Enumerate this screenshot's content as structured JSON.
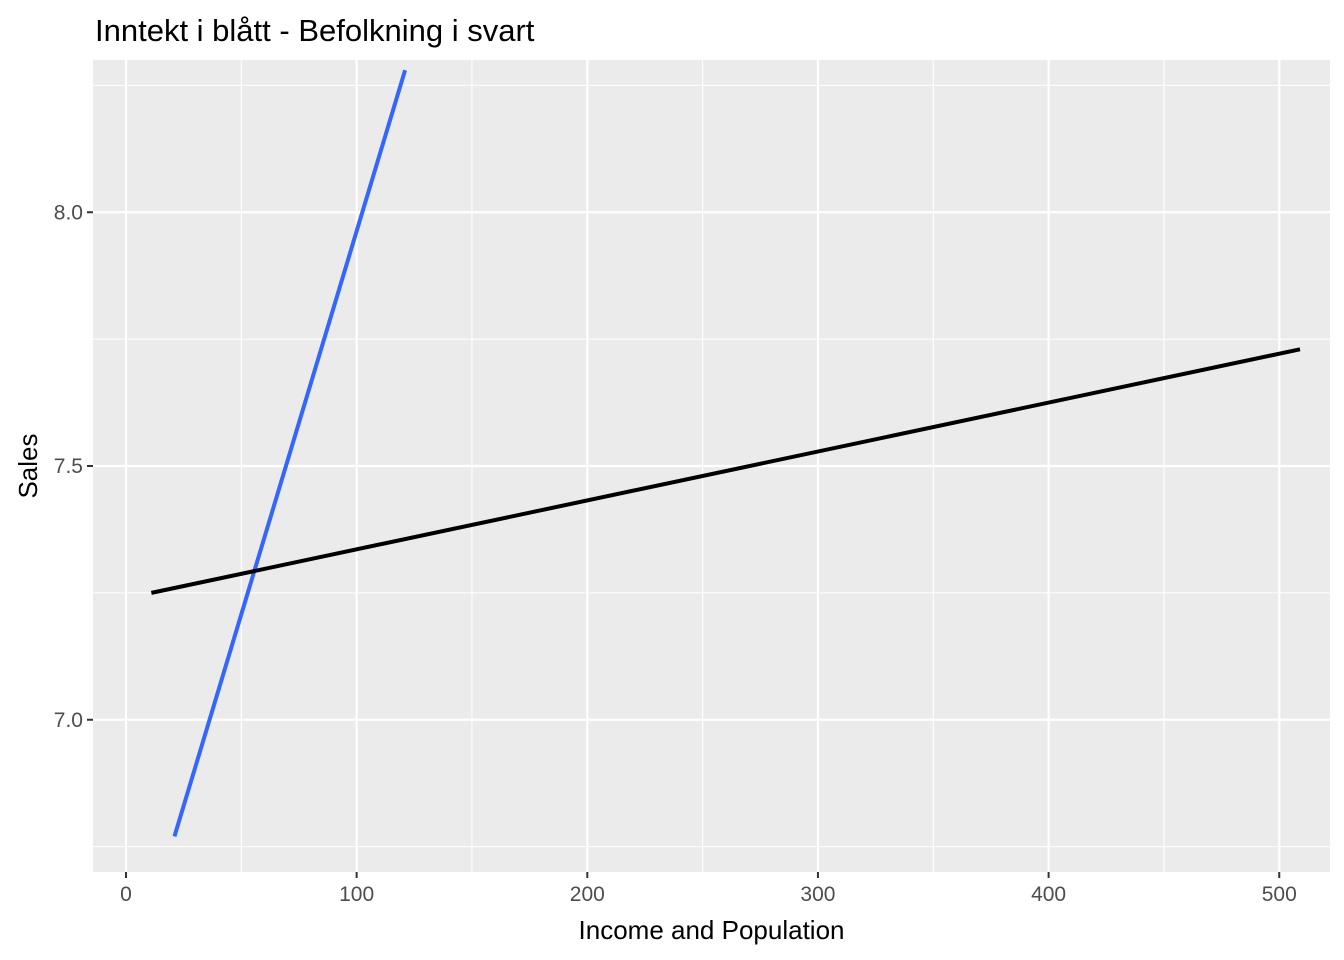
{
  "chart_data": {
    "type": "line",
    "title": "Inntekt i blått - Befolkning i svart",
    "xlabel": "Income and Population",
    "ylabel": "Sales",
    "xlim": [
      -14.3,
      522.0
    ],
    "ylim": [
      6.7,
      8.3
    ],
    "x_ticks": [
      0,
      100,
      200,
      300,
      400,
      500
    ],
    "x_tick_labels": [
      "0",
      "100",
      "200",
      "300",
      "400",
      "500"
    ],
    "y_ticks": [
      7.0,
      7.5,
      8.0
    ],
    "y_tick_labels": [
      "7.0",
      "7.5",
      "8.0"
    ],
    "grid": true,
    "background": "#ebebeb",
    "series": [
      {
        "color": "#3366ff",
        "x": [
          21,
          121
        ],
        "y": [
          6.77,
          8.28
        ]
      },
      {
        "color": "#000000",
        "x": [
          11,
          509
        ],
        "y": [
          7.25,
          7.73
        ]
      }
    ]
  }
}
